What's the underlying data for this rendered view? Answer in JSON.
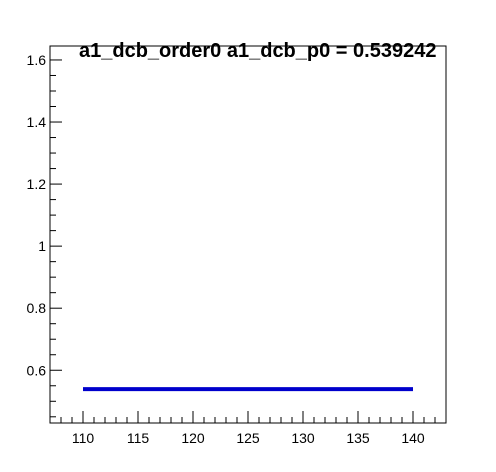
{
  "chart_data": {
    "type": "line",
    "title": "a1_dcb_order0  a1_dcb_p0 = 0.539242",
    "xlabel": "",
    "ylabel": "",
    "xlim": [
      107,
      143
    ],
    "ylim": [
      0.43,
      1.645
    ],
    "x_ticks": [
      {
        "value": 110,
        "label": "110"
      },
      {
        "value": 115,
        "label": "115"
      },
      {
        "value": 120,
        "label": "120"
      },
      {
        "value": 125,
        "label": "125"
      },
      {
        "value": 130,
        "label": "130"
      },
      {
        "value": 135,
        "label": "135"
      },
      {
        "value": 140,
        "label": "140"
      }
    ],
    "y_ticks": [
      {
        "value": 0.6,
        "label": "0.6"
      },
      {
        "value": 0.8,
        "label": "0.8"
      },
      {
        "value": 1.0,
        "label": "1"
      },
      {
        "value": 1.2,
        "label": "1.2"
      },
      {
        "value": 1.4,
        "label": "1.4"
      },
      {
        "value": 1.6,
        "label": "1.6"
      }
    ],
    "x_minor_step": 1,
    "y_minor_step": 0.05,
    "grid": false,
    "series": [
      {
        "color": "#0000cc",
        "x": [
          110,
          140
        ],
        "y": [
          0.539242,
          0.539242
        ]
      }
    ]
  }
}
